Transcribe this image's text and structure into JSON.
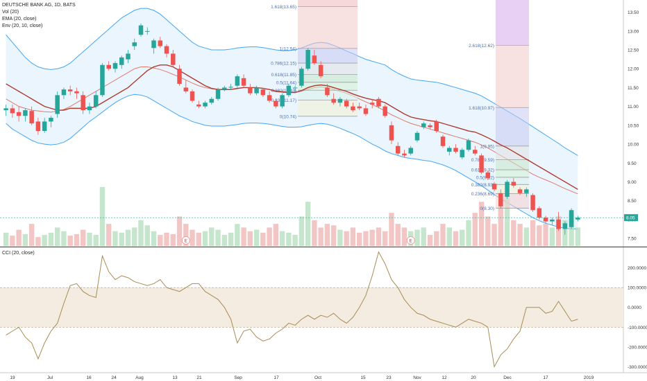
{
  "legend": {
    "symbol": "DEUTSCHE BANK AG, 1D, BATS",
    "vol": "Vol (20)",
    "ema": "EMA (20, close)",
    "env": "Env (20, 10, close)",
    "cci": "CCI (20, close)"
  },
  "colors": {
    "up": "#26a69a",
    "down": "#ef5350",
    "ema": "#b03a2e",
    "env_band": "#42a5f5",
    "env_fill": "#e3f2fd",
    "basis": "#e07b6a",
    "cci_line": "#a88c55",
    "cci_fill": "#f4ece0",
    "last_price": "#26a69a"
  },
  "chart_data": [
    {
      "type": "candlestick",
      "title": "DEUTSCHE BANK AG, 1D, BATS",
      "x_labels": [
        "19",
        "Jul",
        "16",
        "24",
        "Aug",
        "13",
        "21",
        "Sep",
        "17",
        "Oct",
        "15",
        "23",
        "Nov",
        "12",
        "20",
        "Dec",
        "17",
        "2019"
      ],
      "y_ticks": [
        "7.50",
        "8.00",
        "8.50",
        "9.00",
        "9.50",
        "10.00",
        "10.50",
        "11.00",
        "11.50",
        "12.00",
        "12.50",
        "13.00",
        "13.50"
      ],
      "ylim": [
        7.3,
        13.75
      ],
      "last_price_label": "8.05",
      "candles": [
        [
          10.9,
          11.05,
          10.75,
          10.95
        ],
        [
          10.95,
          11.05,
          10.7,
          10.82
        ],
        [
          10.85,
          11.0,
          10.6,
          10.75
        ],
        [
          10.75,
          10.95,
          10.6,
          10.9
        ],
        [
          10.88,
          11.0,
          10.5,
          10.55
        ],
        [
          10.6,
          10.7,
          10.25,
          10.35
        ],
        [
          10.35,
          10.7,
          10.3,
          10.6
        ],
        [
          10.6,
          10.75,
          10.45,
          10.7
        ],
        [
          10.8,
          11.4,
          10.7,
          11.3
        ],
        [
          11.3,
          11.5,
          11.2,
          11.45
        ],
        [
          11.45,
          11.55,
          11.3,
          11.4
        ],
        [
          11.4,
          11.5,
          11.2,
          11.35
        ],
        [
          11.3,
          11.4,
          10.8,
          10.9
        ],
        [
          10.9,
          11.1,
          10.8,
          11.0
        ],
        [
          11.0,
          11.4,
          10.95,
          11.3
        ],
        [
          11.3,
          12.15,
          11.25,
          12.1
        ],
        [
          12.1,
          12.2,
          11.95,
          12.0
        ],
        [
          12.0,
          12.2,
          11.9,
          12.15
        ],
        [
          12.1,
          12.35,
          12.0,
          12.3
        ],
        [
          12.25,
          12.5,
          12.15,
          12.4
        ],
        [
          12.6,
          12.8,
          12.5,
          12.7
        ],
        [
          12.9,
          13.2,
          12.85,
          13.15
        ],
        [
          13.0,
          13.1,
          12.9,
          13.0
        ],
        [
          12.55,
          12.8,
          12.4,
          12.75
        ],
        [
          12.75,
          12.85,
          12.55,
          12.6
        ],
        [
          12.6,
          12.65,
          12.3,
          12.4
        ],
        [
          12.4,
          12.5,
          12.05,
          12.1
        ],
        [
          12.0,
          12.1,
          11.55,
          11.6
        ],
        [
          11.5,
          11.7,
          11.35,
          11.4
        ],
        [
          11.4,
          11.45,
          11.1,
          11.15
        ],
        [
          11.05,
          11.15,
          10.95,
          11.0
        ],
        [
          11.0,
          11.15,
          10.95,
          11.1
        ],
        [
          11.1,
          11.25,
          11.05,
          11.2
        ],
        [
          11.2,
          11.5,
          11.15,
          11.45
        ],
        [
          11.45,
          11.55,
          11.4,
          11.5
        ],
        [
          11.5,
          11.6,
          11.45,
          11.52
        ],
        [
          11.55,
          11.85,
          11.5,
          11.8
        ],
        [
          11.75,
          11.85,
          11.5,
          11.55
        ],
        [
          11.5,
          11.6,
          11.3,
          11.35
        ],
        [
          11.35,
          11.55,
          11.3,
          11.5
        ],
        [
          11.45,
          11.5,
          11.25,
          11.3
        ],
        [
          11.3,
          11.4,
          11.1,
          11.15
        ],
        [
          11.15,
          11.2,
          10.95,
          11.0
        ],
        [
          11.0,
          11.35,
          10.95,
          11.3
        ],
        [
          11.3,
          11.6,
          11.25,
          11.55
        ],
        [
          11.5,
          11.55,
          11.35,
          11.5
        ],
        [
          11.55,
          12.05,
          11.5,
          12.0
        ],
        [
          12.0,
          12.55,
          11.95,
          12.5
        ],
        [
          12.35,
          12.5,
          12.1,
          12.15
        ],
        [
          12.1,
          12.2,
          11.75,
          11.8
        ],
        [
          11.5,
          11.6,
          11.25,
          11.3
        ],
        [
          11.2,
          11.35,
          11.05,
          11.1
        ],
        [
          11.1,
          11.25,
          11.0,
          11.2
        ],
        [
          11.15,
          11.2,
          10.95,
          11.0
        ],
        [
          11.0,
          11.1,
          10.85,
          10.9
        ],
        [
          11.0,
          11.1,
          10.9,
          10.95
        ],
        [
          10.95,
          11.05,
          10.75,
          10.8
        ],
        [
          11.1,
          11.2,
          10.95,
          11.05
        ],
        [
          11.2,
          11.25,
          10.95,
          11.0
        ],
        [
          11.0,
          11.05,
          10.7,
          10.75
        ],
        [
          10.5,
          10.6,
          10.0,
          10.1
        ],
        [
          9.95,
          10.05,
          9.7,
          9.75
        ],
        [
          9.75,
          9.85,
          9.65,
          9.7
        ],
        [
          9.75,
          9.95,
          9.7,
          9.9
        ],
        [
          10.1,
          10.35,
          10.05,
          10.3
        ],
        [
          10.45,
          10.6,
          10.4,
          10.55
        ],
        [
          10.5,
          10.55,
          10.4,
          10.45
        ],
        [
          10.6,
          10.65,
          10.3,
          10.35
        ],
        [
          10.2,
          10.25,
          9.9,
          9.95
        ],
        [
          9.8,
          9.95,
          9.7,
          9.9
        ],
        [
          9.9,
          10.0,
          9.75,
          9.8
        ],
        [
          9.65,
          9.9,
          9.6,
          9.85
        ],
        [
          9.85,
          10.15,
          9.8,
          10.1
        ],
        [
          9.85,
          9.95,
          9.7,
          9.75
        ],
        [
          9.7,
          9.75,
          9.2,
          9.25
        ],
        [
          9.25,
          9.3,
          9.05,
          9.1
        ],
        [
          8.95,
          9.0,
          8.75,
          8.8
        ],
        [
          8.7,
          8.8,
          8.3,
          8.35
        ],
        [
          8.6,
          9.05,
          8.55,
          9.0
        ],
        [
          9.0,
          9.1,
          8.85,
          8.9
        ],
        [
          8.8,
          8.85,
          8.65,
          8.7
        ],
        [
          8.7,
          8.85,
          8.6,
          8.8
        ],
        [
          8.65,
          8.7,
          8.2,
          8.25
        ],
        [
          8.3,
          8.35,
          8.0,
          8.05
        ],
        [
          8.05,
          8.1,
          7.9,
          7.95
        ],
        [
          7.95,
          8.05,
          7.85,
          8.0
        ],
        [
          8.0,
          8.2,
          7.7,
          7.75
        ],
        [
          7.75,
          7.95,
          7.6,
          7.9
        ],
        [
          7.8,
          8.3,
          7.75,
          8.25
        ],
        [
          8.0,
          8.1,
          7.95,
          8.05
        ]
      ],
      "ema": [
        11.6,
        11.5,
        11.4,
        11.3,
        11.2,
        11.1,
        11.0,
        10.95,
        10.9,
        10.9,
        10.95,
        10.95,
        10.95,
        10.95,
        11.0,
        11.1,
        11.2,
        11.3,
        11.4,
        11.5,
        11.65,
        11.8,
        11.95,
        12.05,
        12.1,
        12.1,
        12.05,
        11.95,
        11.85,
        11.75,
        11.65,
        11.55,
        11.48,
        11.45,
        11.45,
        11.45,
        11.48,
        11.5,
        11.5,
        11.5,
        11.48,
        11.45,
        11.4,
        11.38,
        11.37,
        11.37,
        11.42,
        11.5,
        11.55,
        11.57,
        11.55,
        11.5,
        11.45,
        11.4,
        11.33,
        11.27,
        11.22,
        11.18,
        11.15,
        11.1,
        11.0,
        10.9,
        10.8,
        10.72,
        10.68,
        10.65,
        10.62,
        10.6,
        10.55,
        10.5,
        10.45,
        10.4,
        10.35,
        10.32,
        10.25,
        10.17,
        10.08,
        9.98,
        9.9,
        9.8,
        9.7,
        9.6,
        9.5,
        9.4,
        9.3,
        9.2,
        9.1,
        9.0,
        8.9,
        8.8
      ],
      "env_upper": [
        12.9,
        12.7,
        12.5,
        12.3,
        12.15,
        12.05,
        12.0,
        11.98,
        12.0,
        12.05,
        12.15,
        12.3,
        12.45,
        12.6,
        12.75,
        12.9,
        13.05,
        13.2,
        13.35,
        13.45,
        13.55,
        13.6,
        13.6,
        13.55,
        13.45,
        13.3,
        13.15,
        13.0,
        12.85,
        12.7,
        12.6,
        12.55,
        12.5,
        12.5,
        12.5,
        12.52,
        12.55,
        12.57,
        12.58,
        12.58,
        12.56,
        12.53,
        12.5,
        12.48,
        12.48,
        12.5,
        12.55,
        12.62,
        12.68,
        12.7,
        12.68,
        12.62,
        12.55,
        12.47,
        12.4,
        12.32,
        12.25,
        12.2,
        12.15,
        12.1,
        11.98,
        11.88,
        11.8,
        11.73,
        11.7,
        11.68,
        11.66,
        11.64,
        11.6,
        11.55,
        11.5,
        11.45,
        11.4,
        11.35,
        11.28,
        11.18,
        11.08,
        10.98,
        10.88,
        10.78,
        10.68,
        10.57,
        10.46,
        10.35,
        10.24,
        10.13,
        10.02,
        9.9,
        9.8,
        9.7
      ],
      "env_lower": [
        10.55,
        10.4,
        10.3,
        10.2,
        10.1,
        10.03,
        10.0,
        9.98,
        10.0,
        10.05,
        10.15,
        10.3,
        10.45,
        10.6,
        10.72,
        10.85,
        10.98,
        11.1,
        11.2,
        11.28,
        11.32,
        11.3,
        11.25,
        11.15,
        11.05,
        10.95,
        10.85,
        10.75,
        10.68,
        10.6,
        10.55,
        10.5,
        10.48,
        10.48,
        10.48,
        10.5,
        10.52,
        10.55,
        10.56,
        10.56,
        10.55,
        10.53,
        10.5,
        10.47,
        10.45,
        10.45,
        10.46,
        10.5,
        10.53,
        10.55,
        10.53,
        10.48,
        10.42,
        10.35,
        10.28,
        10.2,
        10.1,
        10.0,
        9.92,
        9.82,
        9.75,
        9.7,
        9.65,
        9.62,
        9.6,
        9.57,
        9.55,
        9.5,
        9.45,
        9.38,
        9.3,
        9.2,
        9.1,
        9.0,
        8.9,
        8.78,
        8.66,
        8.55,
        8.45,
        8.35,
        8.25,
        8.15,
        8.05,
        7.97,
        7.9,
        7.85,
        7.8,
        7.77,
        7.75,
        7.75
      ],
      "env_basis": [
        11.2,
        11.1,
        11.0,
        10.95,
        10.9,
        10.88,
        10.86,
        10.85,
        10.88,
        10.92,
        11.0,
        11.1,
        11.2,
        11.3,
        11.4,
        11.5,
        11.6,
        11.7,
        11.8,
        11.9,
        12.0,
        12.05,
        12.05,
        12.02,
        11.98,
        11.92,
        11.85,
        11.78,
        11.7,
        11.62,
        11.55,
        11.5,
        11.47,
        11.45,
        11.44,
        11.45,
        11.47,
        11.5,
        11.5,
        11.5,
        11.48,
        11.45,
        11.42,
        11.4,
        11.38,
        11.38,
        11.4,
        11.45,
        11.5,
        11.52,
        11.5,
        11.45,
        11.4,
        11.35,
        11.28,
        11.2,
        11.12,
        11.05,
        10.97,
        10.88,
        10.78,
        10.7,
        10.62,
        10.55,
        10.5,
        10.45,
        10.4,
        10.35,
        10.3,
        10.25,
        10.2,
        10.15,
        10.1,
        10.05,
        9.98,
        9.9,
        9.8,
        9.7,
        9.6,
        9.5,
        9.4,
        9.3,
        9.2,
        9.12,
        9.05,
        8.98,
        8.9,
        8.82,
        8.75,
        8.68
      ],
      "volume": [
        18,
        14,
        22,
        16,
        30,
        12,
        15,
        18,
        25,
        20,
        14,
        16,
        22,
        18,
        15,
        80,
        30,
        20,
        18,
        22,
        25,
        35,
        28,
        20,
        15,
        18,
        16,
        40,
        30,
        22,
        18,
        20,
        25,
        22,
        15,
        18,
        30,
        25,
        20,
        22,
        18,
        25,
        30,
        20,
        18,
        15,
        40,
        60,
        35,
        25,
        30,
        28,
        22,
        20,
        25,
        18,
        20,
        22,
        25,
        20,
        45,
        30,
        25,
        20,
        22,
        25,
        15,
        20,
        30,
        25,
        20,
        22,
        35,
        45,
        60,
        40,
        30,
        55,
        65,
        35,
        30,
        25,
        35,
        28,
        30,
        25,
        40,
        35,
        45,
        25
      ],
      "earnings_markers": [
        "E",
        "E"
      ],
      "fib_sets": [
        {
          "levels": [
            {
              "label": "1.618(13.65)",
              "price": 13.65
            },
            {
              "label": "1(12.54)",
              "price": 12.54
            },
            {
              "label": "0.786(12.15)",
              "price": 12.15
            },
            {
              "label": "0.618(11.85)",
              "price": 11.85
            },
            {
              "label": "0.5(11.64)",
              "price": 11.64
            },
            {
              "label": "0.382(11.43)",
              "price": 11.43
            },
            {
              "label": "0.236(11.17)",
              "price": 11.17
            },
            {
              "label": "0(10.74)",
              "price": 10.74
            }
          ]
        },
        {
          "levels": [
            {
              "label": "2.618(12.62)",
              "price": 12.62
            },
            {
              "label": "1.618(10.97)",
              "price": 10.97
            },
            {
              "label": "1(9.95)",
              "price": 9.95
            },
            {
              "label": "0.786(9.59)",
              "price": 9.59
            },
            {
              "label": "0.618(9.32)",
              "price": 9.32
            },
            {
              "label": "0.5(9.12)",
              "price": 9.12
            },
            {
              "label": "0.382(8.93)",
              "price": 8.93
            },
            {
              "label": "0.236(8.69)",
              "price": 8.69
            },
            {
              "label": "0(8.30)",
              "price": 8.3
            }
          ]
        }
      ]
    },
    {
      "type": "line",
      "title": "CCI (20, close)",
      "y_ticks": [
        "200.0000",
        "100.0000",
        "0.0000",
        "-100.0000",
        "-200.0000",
        "-300.0000"
      ],
      "ylim": [
        -330,
        300
      ],
      "band": [
        -100,
        100
      ],
      "values": [
        -140,
        -120,
        -100,
        -150,
        -180,
        -260,
        -180,
        -120,
        -80,
        20,
        110,
        120,
        80,
        60,
        50,
        260,
        180,
        140,
        160,
        150,
        130,
        120,
        110,
        120,
        140,
        100,
        90,
        80,
        100,
        120,
        120,
        80,
        60,
        40,
        0,
        -60,
        -180,
        -120,
        -110,
        -150,
        -170,
        -160,
        -130,
        -110,
        -80,
        -90,
        -60,
        -40,
        -60,
        -40,
        -50,
        -30,
        -60,
        -80,
        -50,
        0,
        60,
        160,
        280,
        220,
        140,
        100,
        40,
        0,
        -30,
        -40,
        -60,
        -70,
        -80,
        -90,
        -100,
        -80,
        -60,
        -70,
        -80,
        -100,
        -300,
        -240,
        -210,
        -160,
        -120,
        0,
        0,
        0,
        -30,
        -20,
        30,
        -20,
        -70,
        -60
      ]
    }
  ]
}
